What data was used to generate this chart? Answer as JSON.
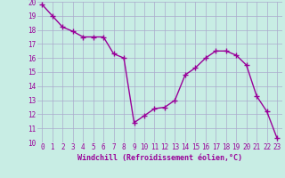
{
  "x": [
    0,
    1,
    2,
    3,
    4,
    5,
    6,
    7,
    8,
    9,
    10,
    11,
    12,
    13,
    14,
    15,
    16,
    17,
    18,
    19,
    20,
    21,
    22,
    23
  ],
  "y": [
    19.8,
    19.0,
    18.2,
    17.9,
    17.5,
    17.5,
    17.5,
    16.3,
    16.0,
    11.4,
    11.9,
    12.4,
    12.5,
    13.0,
    14.8,
    15.3,
    16.0,
    16.5,
    16.5,
    16.2,
    15.5,
    13.3,
    12.2,
    10.3
  ],
  "line_color": "#990099",
  "marker": "+",
  "marker_size": 4,
  "marker_edge_width": 1.0,
  "line_width": 1.0,
  "bg_color": "#c8ede4",
  "grid_color": "#aaaacc",
  "xlabel": "Windchill (Refroidissement éolien,°C)",
  "xlabel_color": "#990099",
  "xlabel_fontsize": 6.0,
  "xtick_labels": [
    "0",
    "1",
    "2",
    "3",
    "4",
    "5",
    "6",
    "7",
    "8",
    "9",
    "10",
    "11",
    "12",
    "13",
    "14",
    "15",
    "16",
    "17",
    "18",
    "19",
    "20",
    "21",
    "22",
    "23"
  ],
  "ytick_labels": [
    "10",
    "11",
    "12",
    "13",
    "14",
    "15",
    "16",
    "17",
    "18",
    "19",
    "20"
  ],
  "ylim": [
    10,
    20
  ],
  "xlim": [
    -0.5,
    23.5
  ],
  "tick_color": "#990099",
  "tick_fontsize": 5.5
}
